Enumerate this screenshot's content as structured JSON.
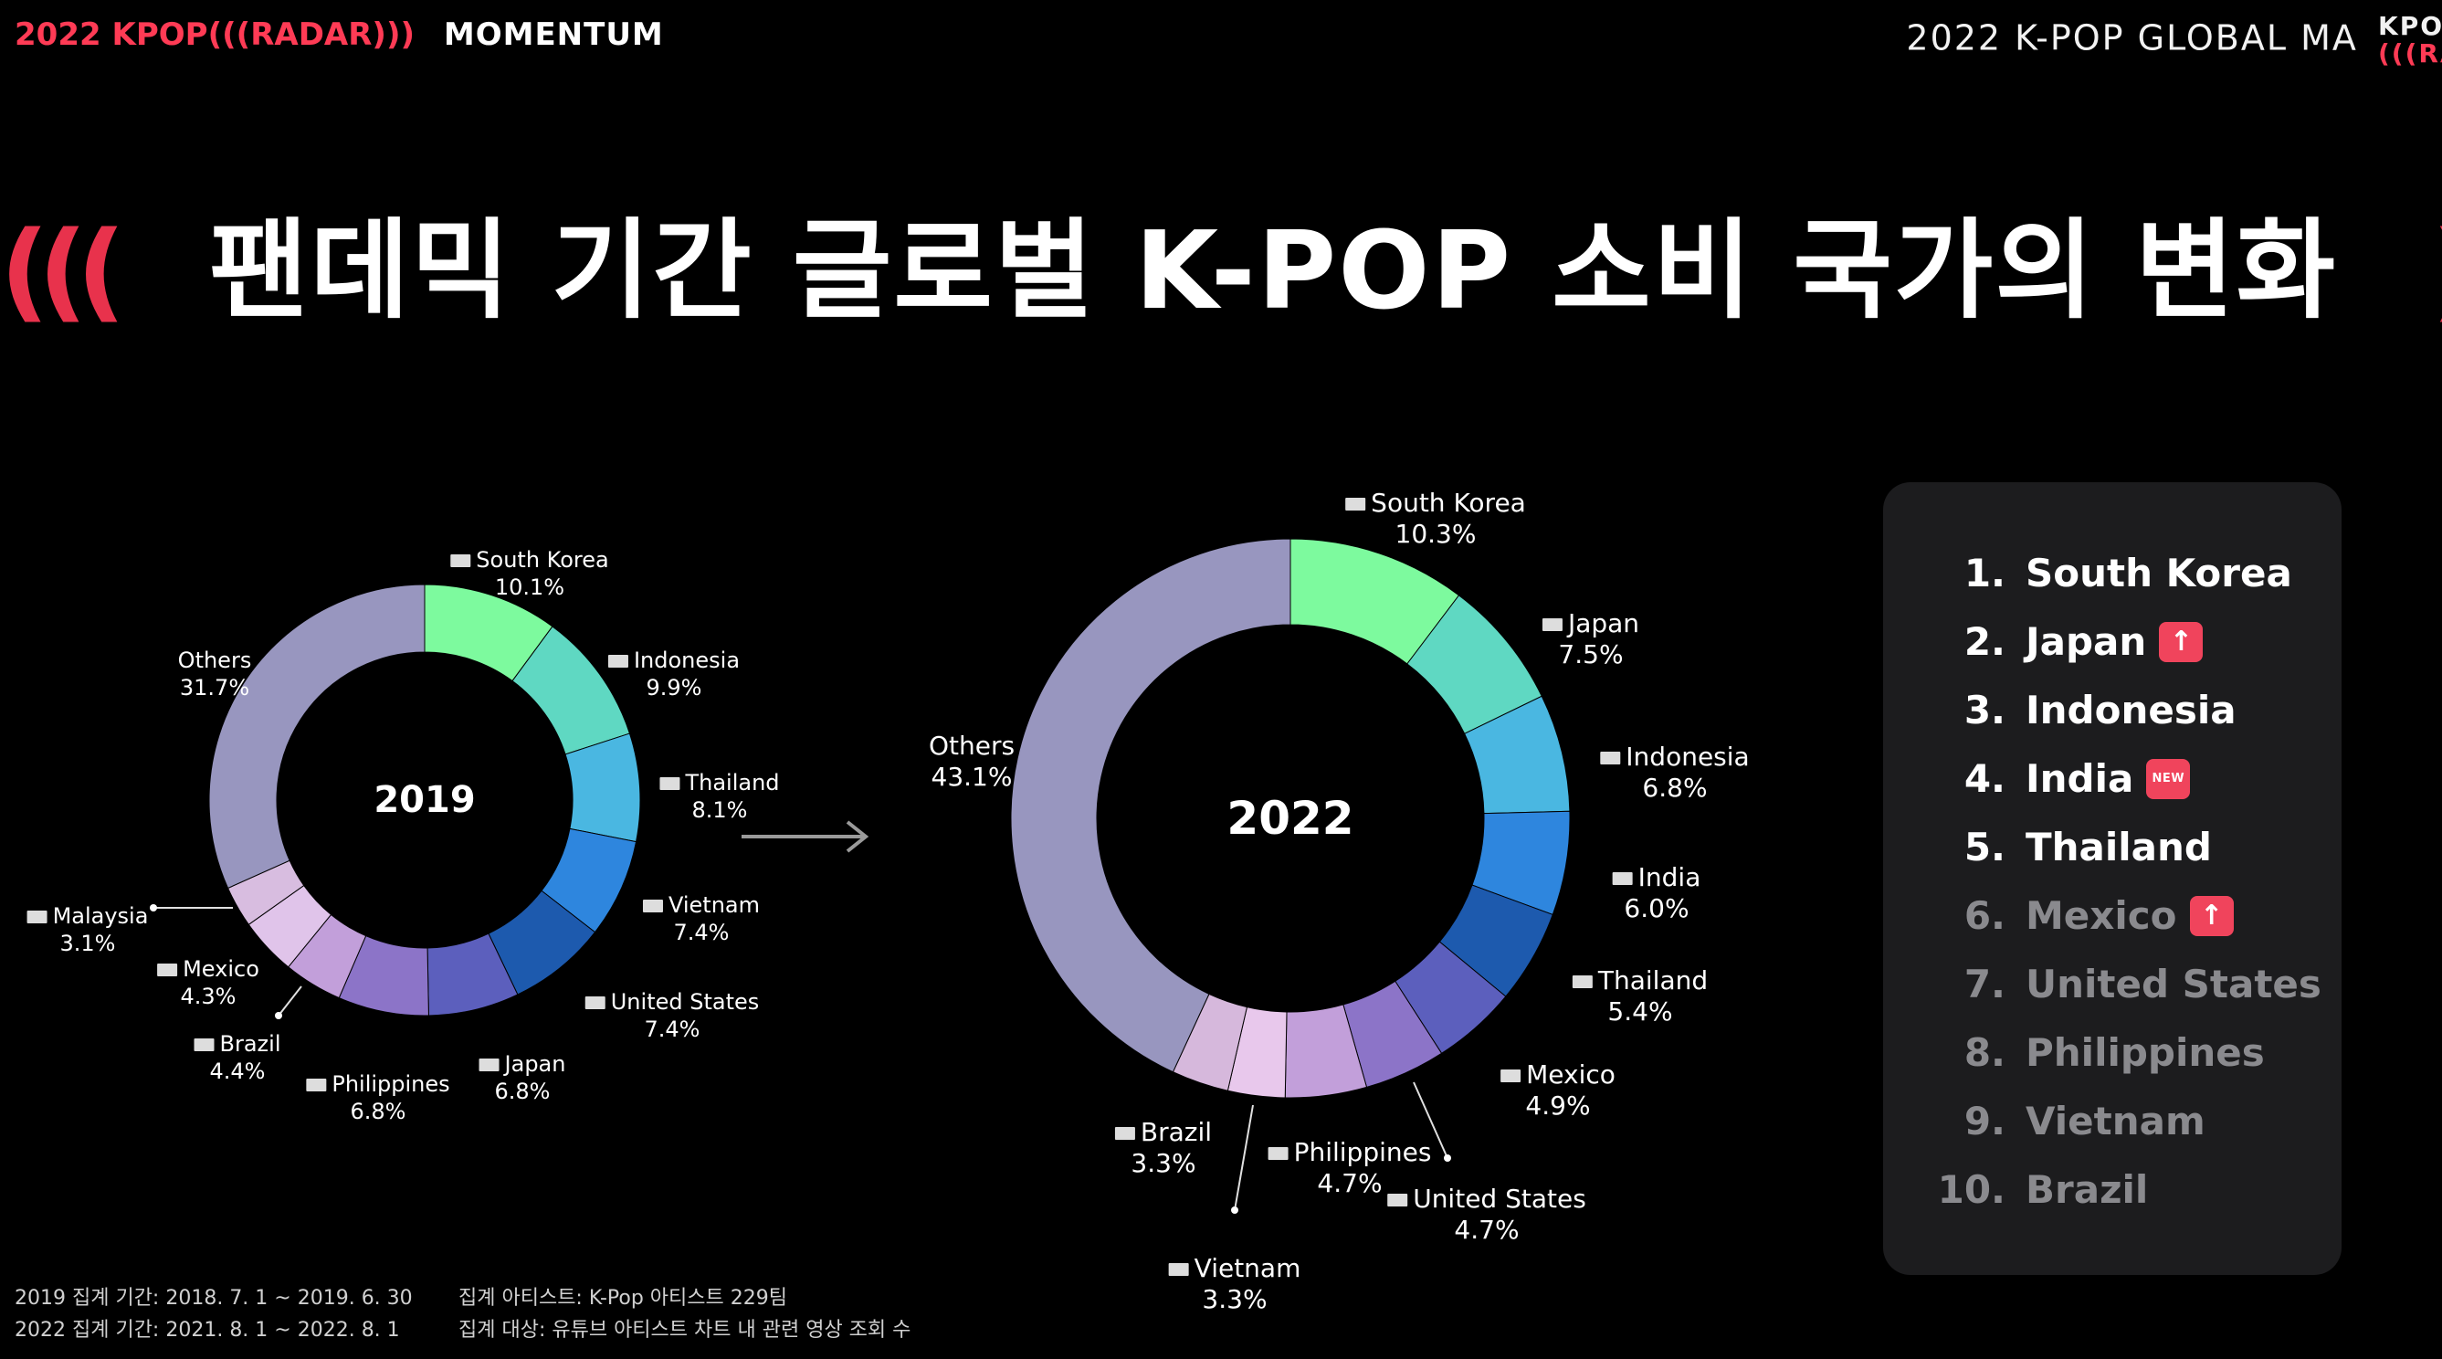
{
  "header": {
    "left_year": "2022",
    "left_kpop": "KPOP",
    "left_radar": "(((RADAR)))",
    "left_momentum": "MOMENTUM",
    "right_title": "2022 K-POP GLOBAL MA",
    "right_logo_line1": "KPO",
    "right_logo_line2": "(((RAD"
  },
  "title": {
    "left_arcs": "(((",
    "text": "팬데믹 기간 글로벌 K-POP 소비 국가의 변화",
    "right_arcs": ")))"
  },
  "chart_data": [
    {
      "type": "pie",
      "variant": "donut",
      "center_label": "2019",
      "categories": [
        "South Korea",
        "Indonesia",
        "Thailand",
        "Vietnam",
        "United States",
        "Japan",
        "Philippines",
        "Brazil",
        "Mexico",
        "Malaysia",
        "Others"
      ],
      "values": [
        10.1,
        9.9,
        8.1,
        7.4,
        7.4,
        6.8,
        6.8,
        4.4,
        4.3,
        3.1,
        31.7
      ],
      "labels": [
        "10.1%",
        "9.9%",
        "8.1%",
        "7.4%",
        "7.4%",
        "6.8%",
        "6.8%",
        "4.4%",
        "4.3%",
        "3.1%",
        "31.7%"
      ],
      "colors": [
        "#7dfa9e",
        "#5fd8c2",
        "#4ab7e1",
        "#2e86de",
        "#1d5aae",
        "#5c5fbd",
        "#8c74c8",
        "#c29fda",
        "#e0c4ea",
        "#d8bde0",
        "#9896bf"
      ]
    },
    {
      "type": "pie",
      "variant": "donut",
      "center_label": "2022",
      "categories": [
        "South Korea",
        "Japan",
        "Indonesia",
        "India",
        "Thailand",
        "Mexico",
        "United States",
        "Philippines",
        "Vietnam",
        "Brazil",
        "Others"
      ],
      "values": [
        10.3,
        7.5,
        6.8,
        6.0,
        5.4,
        4.9,
        4.7,
        4.7,
        3.3,
        3.3,
        43.1
      ],
      "labels": [
        "10.3%",
        "7.5%",
        "6.8%",
        "6.0%",
        "5.4%",
        "4.9%",
        "4.7%",
        "4.7%",
        "3.3%",
        "3.3%",
        "43.1%"
      ],
      "colors": [
        "#7dfa9e",
        "#5fd8c2",
        "#4ab7e1",
        "#2e86de",
        "#1d5aae",
        "#5c5fbd",
        "#8c74c8",
        "#c29fda",
        "#e8c8ec",
        "#d6b8dc",
        "#9896bf"
      ]
    }
  ],
  "ranking": [
    {
      "rank": "1.",
      "country": "South Korea",
      "badge": "",
      "dim": false
    },
    {
      "rank": "2.",
      "country": "Japan",
      "badge": "↑",
      "dim": false
    },
    {
      "rank": "3.",
      "country": "Indonesia",
      "badge": "",
      "dim": false
    },
    {
      "rank": "4.",
      "country": "India",
      "badge": "NEW",
      "dim": false
    },
    {
      "rank": "5.",
      "country": "Thailand",
      "badge": "",
      "dim": false
    },
    {
      "rank": "6.",
      "country": "Mexico",
      "badge": "↑",
      "dim": true
    },
    {
      "rank": "7.",
      "country": "United States",
      "badge": "",
      "dim": true
    },
    {
      "rank": "8.",
      "country": "Philippines",
      "badge": "",
      "dim": true
    },
    {
      "rank": "9.",
      "country": "Vietnam",
      "badge": "",
      "dim": true
    },
    {
      "rank": "10.",
      "country": "Brazil",
      "badge": "",
      "dim": true
    }
  ],
  "footnotes": {
    "period_2019": "2019 집계 기간: 2018. 7. 1 ~ 2019. 6. 30",
    "period_2022": "2022 집계 기간: 2021. 8. 1 ~ 2022. 8. 1",
    "artists": "집계 아티스트: K-Pop 아티스트 229팀",
    "target": "집계 대상: 유튜브 아티스트 차트 내 관련 영상 조회 수"
  },
  "colors": {
    "accent_red": "#e8324c",
    "panel_bg": "#1c1c1e",
    "dim_text": "#8a8a8e",
    "badge_red": "#f0445c"
  }
}
